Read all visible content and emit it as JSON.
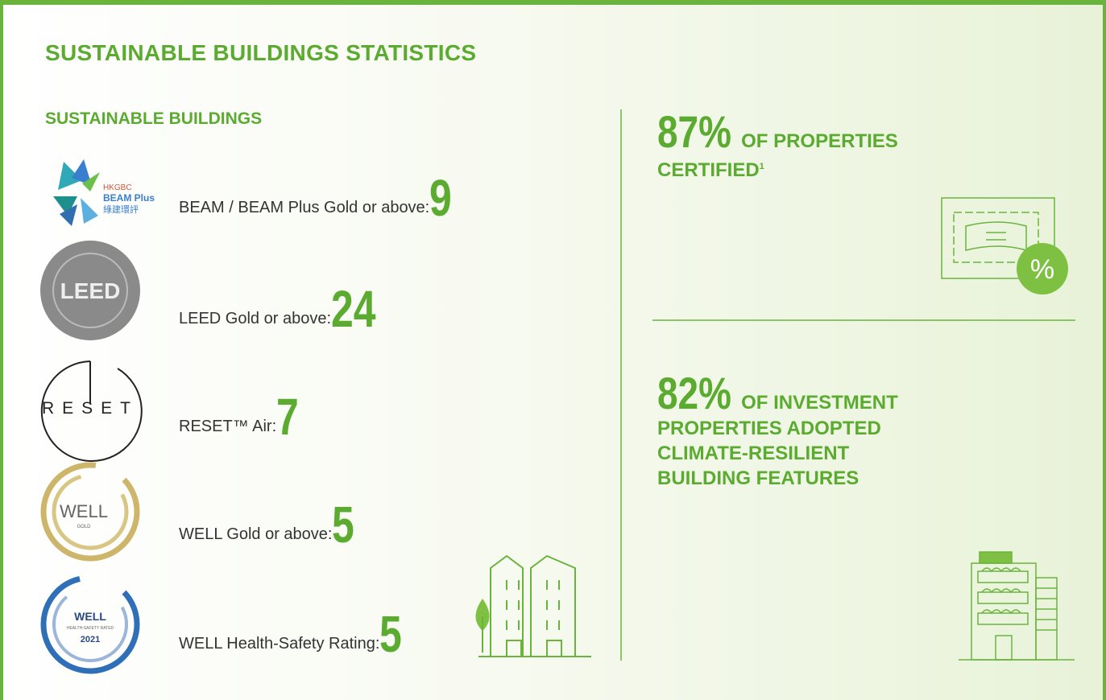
{
  "header": {
    "title": "SUSTAINABLE BUILDINGS STATISTICS"
  },
  "left": {
    "heading": "SUSTAINABLE BUILDINGS",
    "items": [
      {
        "logo": [
          "HKGBC",
          "BEAM Plus",
          "綠建環評"
        ],
        "label": "BEAM / BEAM Plus Gold or above:",
        "value": 9
      },
      {
        "logo": [
          "LEED"
        ],
        "label": "LEED Gold or above:",
        "value": 24
      },
      {
        "logo": [
          "RESET"
        ],
        "label": "RESET™ Air:",
        "value": 7
      },
      {
        "logo": [
          "WELL",
          "GOLD"
        ],
        "label": "WELL Gold or above:",
        "value": 5
      },
      {
        "logo": [
          "WELL",
          "HEALTH-SAFETY RATED",
          "2021"
        ],
        "label": "WELL Health-Safety Rating:",
        "value": 5
      }
    ]
  },
  "right": {
    "stats": [
      {
        "value": "87%",
        "lines": [
          "OF PROPERTIES",
          "CERTIFIED"
        ],
        "sup": "1"
      },
      {
        "value": "82%",
        "lines": [
          "OF INVESTMENT",
          "PROPERTIES ADOPTED",
          "CLIMATE-RESILIENT",
          "BUILDING FEATURES"
        ]
      }
    ]
  }
}
